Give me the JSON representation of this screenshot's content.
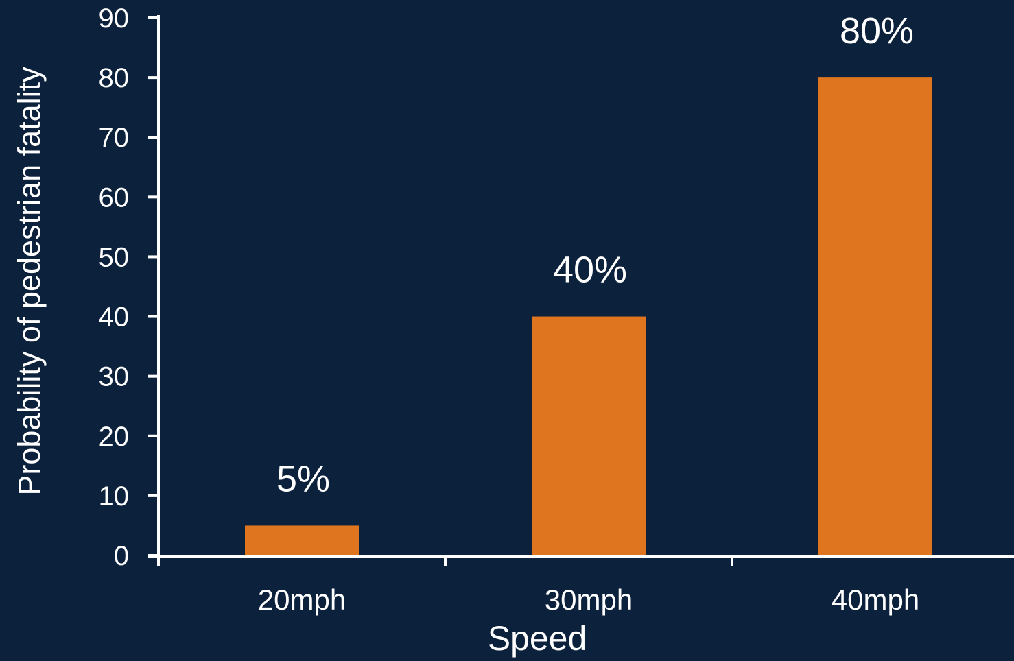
{
  "chart_data": {
    "type": "bar",
    "categories": [
      "20mph",
      "30mph",
      "40mph"
    ],
    "values": [
      5,
      40,
      80
    ],
    "data_labels": [
      "5%",
      "40%",
      "80%"
    ],
    "title": "",
    "xlabel": "Speed",
    "ylabel": "Probability of pedestrian fatality",
    "ylim": [
      0,
      90
    ],
    "yticks": [
      "0",
      "10",
      "20",
      "30",
      "40",
      "50",
      "60",
      "70",
      "80",
      "90"
    ],
    "grid": false,
    "legend": "none",
    "colors": {
      "background": "#0c213c",
      "bar": "#e07520",
      "axis": "#ffffff",
      "text": "#ffffff"
    }
  }
}
